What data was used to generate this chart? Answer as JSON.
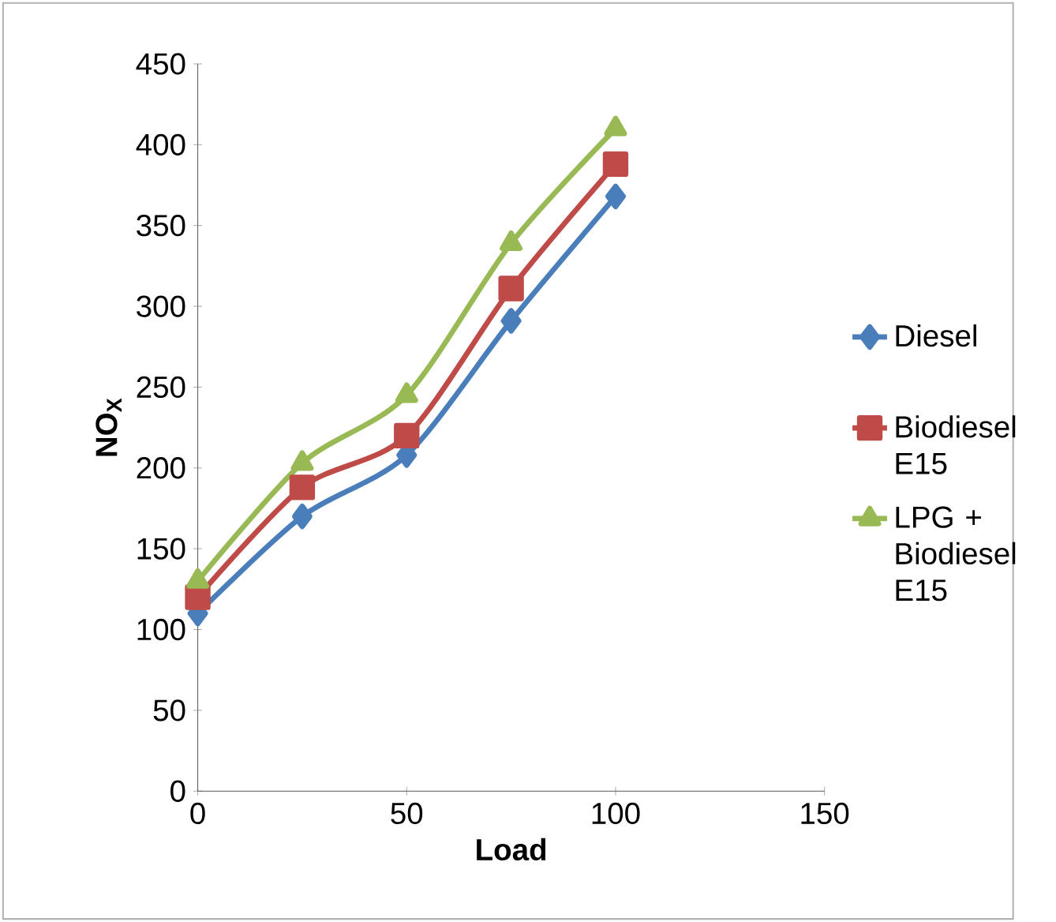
{
  "chart_data": {
    "type": "line",
    "xlabel": "Load",
    "ylabel": "NO$_{X}$",
    "x": [
      0,
      25,
      50,
      75,
      100
    ],
    "xlim": [
      0,
      150
    ],
    "xticks": [
      0,
      50,
      100,
      150
    ],
    "ylim": [
      0,
      450
    ],
    "yticks": [
      0,
      50,
      100,
      150,
      200,
      250,
      300,
      350,
      400,
      450
    ],
    "legend": "right",
    "grid": false,
    "series": [
      {
        "name": "Diesel",
        "color": "#4a7ebb",
        "marker": "diamond",
        "values": [
          110,
          170,
          208,
          291,
          368
        ]
      },
      {
        "name": "Biodiesel E15",
        "color": "#be4b48",
        "marker": "square",
        "values": [
          120,
          188,
          220,
          311,
          388
        ]
      },
      {
        "name": "LPG + Biodiesel E15",
        "color": "#98b954",
        "marker": "triangle",
        "values": [
          130,
          203,
          245,
          339,
          410
        ]
      }
    ]
  }
}
